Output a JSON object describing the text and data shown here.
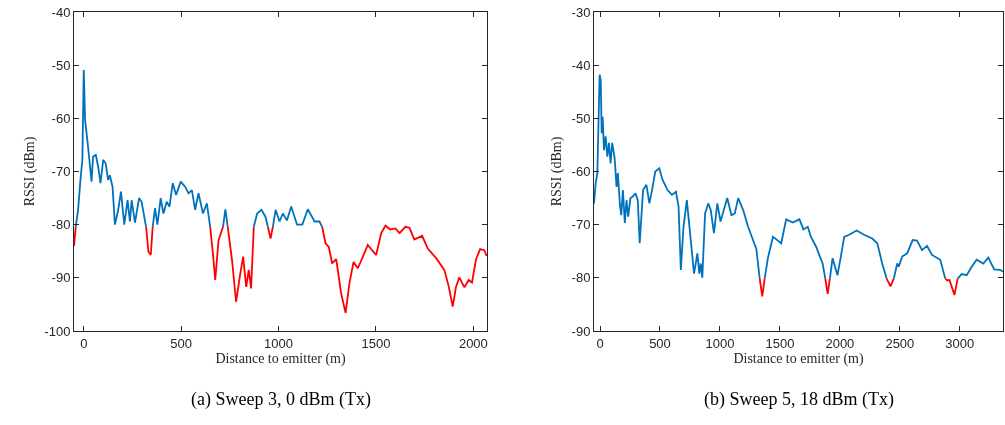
{
  "chart_data": [
    {
      "type": "line",
      "xlabel": "Distance to emitter (m)",
      "ylabel": "RSSI (dBm)",
      "annotations": [
        "(a) Sweep 3, 0 dBm (Tx)"
      ],
      "xlim": [
        -50,
        2070
      ],
      "ylim": [
        -100,
        -40
      ],
      "xticks": [
        0,
        500,
        1000,
        1500,
        2000
      ],
      "yticks": [
        -100,
        -90,
        -80,
        -70,
        -60,
        -50,
        -40
      ],
      "line_style": "solid",
      "series": [
        {
          "color": "#ff0000",
          "x": [
            -50,
            -41
          ],
          "values": [
            -84.0,
            -80.4
          ]
        },
        {
          "color": "#0072bd",
          "x": [
            -41,
            -29,
            -17,
            -7,
            0,
            7,
            22,
            40,
            48,
            62,
            74,
            86,
            100,
            113,
            125,
            134,
            148,
            160,
            177,
            191,
            208,
            225,
            237,
            246,
            263,
            284,
            297,
            320
          ],
          "values": [
            -80.4,
            -77.2,
            -71.6,
            -67.8,
            -50.9,
            -60.3,
            -65.3,
            -71.9,
            -67.2,
            -66.9,
            -69.1,
            -72.2,
            -67.8,
            -68.5,
            -71.6,
            -70.7,
            -72.9,
            -80.0,
            -77.2,
            -73.8,
            -80.0,
            -75.4,
            -79.4,
            -75.4,
            -79.6,
            -75.0,
            -75.7,
            -80.4
          ]
        },
        {
          "color": "#ff0000",
          "x": [
            320,
            332,
            344,
            354
          ],
          "values": [
            -80.4,
            -85.1,
            -85.7,
            -80.4
          ]
        },
        {
          "color": "#0072bd",
          "x": [
            354,
            366,
            378,
            395,
            409,
            426,
            440,
            457,
            474,
            498,
            521,
            538,
            555,
            572,
            589,
            612,
            632,
            649
          ],
          "values": [
            -80.4,
            -76.9,
            -80.0,
            -75.0,
            -77.9,
            -75.7,
            -76.6,
            -72.2,
            -74.4,
            -71.9,
            -72.9,
            -74.1,
            -73.5,
            -77.2,
            -74.1,
            -77.9,
            -76.0,
            -80.4
          ]
        },
        {
          "color": "#ff0000",
          "x": [
            649,
            663,
            675,
            692,
            715
          ],
          "values": [
            -80.4,
            -85.4,
            -90.4,
            -82.9,
            -80.4
          ]
        },
        {
          "color": "#0072bd",
          "x": [
            715,
            727,
            739
          ],
          "values": [
            -80.4,
            -77.1,
            -80.4
          ]
        },
        {
          "color": "#ff0000",
          "x": [
            739,
            761,
            782,
            801,
            818,
            834,
            847,
            859,
            873
          ],
          "values": [
            -80.4,
            -86.6,
            -94.5,
            -89.8,
            -86.0,
            -91.7,
            -88.5,
            -92.0,
            -80.4
          ]
        },
        {
          "color": "#0072bd",
          "x": [
            873,
            890,
            912,
            933,
            945
          ],
          "values": [
            -80.4,
            -77.9,
            -77.2,
            -78.5,
            -80.4
          ]
        },
        {
          "color": "#ff0000",
          "x": [
            945,
            959,
            971
          ],
          "values": [
            -80.4,
            -82.6,
            -80.4
          ]
        },
        {
          "color": "#0072bd",
          "x": [
            971,
            985,
            1005,
            1022,
            1043,
            1065,
            1095,
            1122,
            1150,
            1185,
            1210,
            1224
          ],
          "values": [
            -80.4,
            -77.2,
            -79.4,
            -77.9,
            -79.2,
            -76.6,
            -80.0,
            -80.0,
            -77.1,
            -79.4,
            -79.4,
            -80.4
          ]
        },
        {
          "color": "#ff0000",
          "x": [
            1224,
            1241,
            1258,
            1275,
            1296,
            1321,
            1344,
            1364,
            1385,
            1407,
            1433,
            1458,
            1480,
            1501,
            1527,
            1549,
            1573,
            1600,
            1621,
            1651,
            1672,
            1697,
            1737,
            1766,
            1809,
            1851,
            1874,
            1894,
            1911,
            1928,
            1954,
            1976,
            1993,
            2013,
            2035,
            2056,
            2068
          ],
          "values": [
            -80.4,
            -83.5,
            -84.2,
            -87.3,
            -86.5,
            -92.9,
            -96.6,
            -91.0,
            -87.0,
            -88.2,
            -86.0,
            -83.8,
            -84.8,
            -85.7,
            -81.6,
            -80.2,
            -80.9,
            -80.7,
            -81.6,
            -80.4,
            -80.6,
            -82.8,
            -82.1,
            -84.5,
            -86.3,
            -88.5,
            -91.7,
            -95.4,
            -91.7,
            -89.9,
            -91.8,
            -90.4,
            -90.9,
            -86.6,
            -84.6,
            -84.8,
            -85.9
          ]
        }
      ]
    },
    {
      "type": "line",
      "xlabel": "Distance to emitter (m)",
      "ylabel": "RSSI (dBm)",
      "annotations": [
        "(b) Sweep 5, 18 dBm (Tx)"
      ],
      "xlim": [
        -50,
        3360
      ],
      "ylim": [
        -90,
        -30
      ],
      "xticks": [
        0,
        500,
        1000,
        1500,
        2000,
        2500,
        3000
      ],
      "yticks": [
        -90,
        -80,
        -70,
        -60,
        -50,
        -40,
        -30
      ],
      "line_style": "solid",
      "series": [
        {
          "color": "#0072bd",
          "x": [
            -50,
            -36,
            -22,
            -14,
            -3,
            6,
            14,
            22,
            33,
            47,
            61,
            75,
            88,
            102,
            122,
            138,
            149,
            166,
            177,
            191,
            207,
            221,
            235,
            254,
            273,
            296,
            315,
            331,
            359,
            387,
            412,
            434,
            461,
            494,
            522,
            563,
            600,
            633,
            655,
            674,
            696,
            724,
            751,
            784,
            812,
            828,
            840,
            853,
            876,
            903,
            923,
            950,
            978,
            1005,
            1033,
            1061,
            1096,
            1124,
            1152,
            1193,
            1235,
            1271,
            1304,
            1331
          ],
          "values": [
            -66.0,
            -62.2,
            -60.3,
            -52.2,
            -41.8,
            -42.8,
            -52.8,
            -49.7,
            -56.0,
            -53.4,
            -57.2,
            -54.6,
            -58.5,
            -54.6,
            -57.5,
            -62.9,
            -60.3,
            -66.3,
            -68.2,
            -63.5,
            -69.7,
            -65.4,
            -68.5,
            -65.0,
            -64.7,
            -64.1,
            -65.4,
            -73.5,
            -63.5,
            -62.5,
            -66.0,
            -63.5,
            -60.0,
            -59.4,
            -61.6,
            -63.5,
            -64.4,
            -63.8,
            -66.6,
            -78.5,
            -70.4,
            -65.4,
            -71.6,
            -79.2,
            -75.4,
            -79.2,
            -77.3,
            -80.0,
            -67.9,
            -66.0,
            -67.2,
            -71.6,
            -66.0,
            -69.4,
            -67.2,
            -65.0,
            -68.2,
            -67.9,
            -65.0,
            -67.2,
            -70.4,
            -72.6,
            -74.6,
            -80.1
          ]
        },
        {
          "color": "#ff0000",
          "x": [
            1331,
            1353,
            1373
          ],
          "values": [
            -80.1,
            -83.5,
            -80.1
          ]
        },
        {
          "color": "#0072bd",
          "x": [
            1373,
            1400,
            1442,
            1483,
            1511,
            1552,
            1607,
            1663,
            1696,
            1732,
            1759,
            1801,
            1856,
            1878
          ],
          "values": [
            -80.1,
            -76.3,
            -72.3,
            -73.0,
            -73.5,
            -69.0,
            -69.6,
            -69.0,
            -70.9,
            -70.4,
            -72.3,
            -74.1,
            -77.3,
            -80.1
          ]
        },
        {
          "color": "#ff0000",
          "x": [
            1878,
            1898,
            1917
          ],
          "values": [
            -80.1,
            -83.0,
            -80.1
          ]
        },
        {
          "color": "#0072bd",
          "x": [
            1917,
            1939,
            1980,
            2008,
            2036,
            2077,
            2140,
            2201,
            2270,
            2312,
            2353,
            2389
          ],
          "values": [
            -80.1,
            -76.3,
            -79.5,
            -76.0,
            -72.3,
            -71.9,
            -71.1,
            -71.9,
            -72.6,
            -73.5,
            -77.3,
            -80.1
          ]
        },
        {
          "color": "#ff0000",
          "x": [
            2389,
            2422,
            2450
          ],
          "values": [
            -80.1,
            -81.6,
            -80.1
          ]
        },
        {
          "color": "#0072bd",
          "x": [
            2450,
            2478,
            2491,
            2519,
            2561,
            2607,
            2643,
            2685,
            2726,
            2768,
            2837,
            2878
          ],
          "values": [
            -80.1,
            -77.3,
            -77.9,
            -76.0,
            -75.4,
            -72.9,
            -73.0,
            -74.8,
            -74.0,
            -75.7,
            -76.6,
            -80.1
          ]
        },
        {
          "color": "#ff0000",
          "x": [
            2878,
            2895,
            2914,
            2955,
            2983
          ],
          "values": [
            -80.1,
            -80.5,
            -80.4,
            -83.2,
            -80.1
          ]
        },
        {
          "color": "#0072bd",
          "x": [
            2983,
            3016,
            3057,
            3099,
            3140,
            3196,
            3237,
            3287,
            3334,
            3360
          ],
          "values": [
            -80.1,
            -79.3,
            -79.5,
            -77.9,
            -76.6,
            -77.3,
            -76.2,
            -78.4,
            -78.5,
            -78.8
          ]
        }
      ]
    }
  ]
}
